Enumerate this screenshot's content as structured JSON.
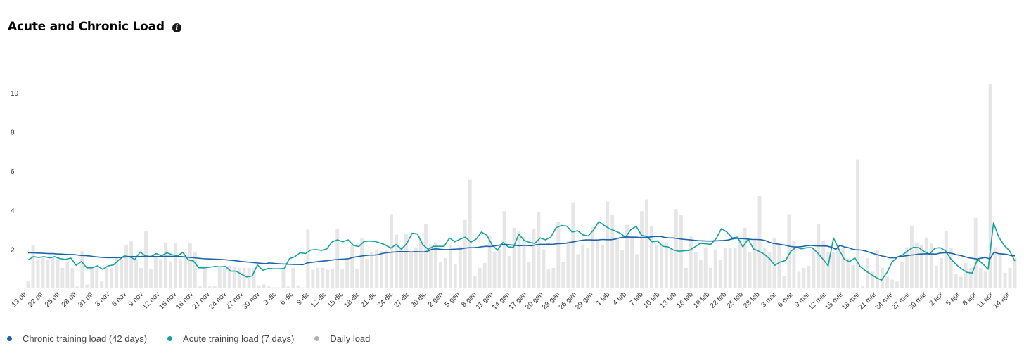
{
  "header": {
    "title": "Acute and Chronic Load",
    "info_icon": "info-icon"
  },
  "colors": {
    "chronic": "#1b64a8",
    "acute": "#14a39a",
    "daily": "#e6e6e6",
    "daily_legend": "#b0b0b0"
  },
  "chart_data": {
    "type": "bar",
    "ylim": [
      0,
      11
    ],
    "yticks": [
      2,
      4,
      6,
      8,
      10
    ],
    "grid": false,
    "legend_position": "bottom-left",
    "xtick_labels": [
      "19 ott",
      "22 ott",
      "25 ott",
      "28 ott",
      "31 ott",
      "3 nov",
      "6 nov",
      "9 nov",
      "12 nov",
      "15 nov",
      "18 nov",
      "21 nov",
      "24 nov",
      "27 nov",
      "30 nov",
      "3 dic",
      "6 dic",
      "9 dic",
      "12 dic",
      "15 dic",
      "18 dic",
      "21 dic",
      "24 dic",
      "27 dic",
      "30 dic",
      "2 gen",
      "5 gen",
      "8 gen",
      "11 gen",
      "14 gen",
      "17 gen",
      "20 gen",
      "23 gen",
      "26 gen",
      "29 gen",
      "1 feb",
      "4 feb",
      "7 feb",
      "10 feb",
      "13 feb",
      "16 feb",
      "19 feb",
      "22 feb",
      "25 feb",
      "28 feb",
      "3 mar",
      "6 mar",
      "9 mar",
      "12 mar",
      "15 mar",
      "18 mar",
      "21 mar",
      "24 mar",
      "27 mar",
      "30 mar",
      "2 apr",
      "5 apr",
      "8 apr",
      "11 apr",
      "14 apr"
    ],
    "series": [
      {
        "name": "Chronic training load (42 days)",
        "kind": "line",
        "values": [
          1.82,
          1.82,
          1.81,
          1.8,
          1.79,
          1.78,
          1.78,
          1.76,
          1.75,
          1.74,
          1.73,
          1.73,
          1.7,
          1.68,
          1.67,
          1.65,
          1.62,
          1.6,
          1.58,
          1.57,
          1.57,
          1.57,
          1.58,
          1.6,
          1.62,
          1.63,
          1.62,
          1.63,
          1.64,
          1.63,
          1.64,
          1.62,
          1.63,
          1.64,
          1.64,
          1.63,
          1.63,
          1.62,
          1.6,
          1.58,
          1.56,
          1.54,
          1.52,
          1.51,
          1.5,
          1.49,
          1.48,
          1.47,
          1.45,
          1.43,
          1.41,
          1.38,
          1.36,
          1.34,
          1.32,
          1.3,
          1.28,
          1.26,
          1.3,
          1.28,
          1.26,
          1.25,
          1.24,
          1.23,
          1.22,
          1.22,
          1.21,
          1.3,
          1.33,
          1.35,
          1.38,
          1.4,
          1.42,
          1.45,
          1.47,
          1.49,
          1.5,
          1.52,
          1.58,
          1.62,
          1.65,
          1.68,
          1.7,
          1.7,
          1.72,
          1.78,
          1.82,
          1.84,
          1.86,
          1.88,
          1.88,
          1.88,
          1.86,
          1.88,
          1.87,
          1.86,
          1.9,
          2.0,
          2.02,
          2.0,
          1.98,
          1.98,
          2.0,
          2.01,
          2.02,
          2.06,
          2.08,
          2.08,
          2.1,
          2.13,
          2.15,
          2.14,
          2.17,
          2.21,
          2.24,
          2.24,
          2.22,
          2.2,
          2.18,
          2.2,
          2.19,
          2.18,
          2.23,
          2.25,
          2.25,
          2.26,
          2.25,
          2.28,
          2.29,
          2.3,
          2.34,
          2.38,
          2.42,
          2.46,
          2.48,
          2.48,
          2.47,
          2.48,
          2.5,
          2.49,
          2.49,
          2.52,
          2.58,
          2.62,
          2.63,
          2.62,
          2.62,
          2.6,
          2.6,
          2.62,
          2.64,
          2.66,
          2.65,
          2.6,
          2.58,
          2.58,
          2.55,
          2.52,
          2.5,
          2.48,
          2.46,
          2.44,
          2.43,
          2.42,
          2.42,
          2.43,
          2.44,
          2.45,
          2.47,
          2.52,
          2.56,
          2.55,
          2.54,
          2.52,
          2.5,
          2.5,
          2.49,
          2.45,
          2.36,
          2.3,
          2.27,
          2.24,
          2.2,
          2.15,
          2.12,
          2.12,
          2.14,
          2.18,
          2.2,
          2.18,
          2.17,
          2.17,
          2.16,
          2.1,
          2.0,
          2.2,
          2.12,
          2.08,
          2.0,
          1.97,
          1.96,
          1.92,
          1.85,
          1.78,
          1.72,
          1.66,
          1.62,
          1.56,
          1.56,
          1.62,
          1.64,
          1.67,
          1.7,
          1.72,
          1.75,
          1.76,
          1.77,
          1.76,
          1.75,
          1.8,
          1.82,
          1.82,
          1.78,
          1.72,
          1.68,
          1.62,
          1.56,
          1.53,
          1.5,
          1.55,
          1.58,
          1.5,
          1.85,
          1.78,
          1.76,
          1.74,
          1.68,
          1.66
        ]
      },
      {
        "name": "Acute training load (7 days)",
        "kind": "line",
        "values": [
          1.45,
          1.62,
          1.58,
          1.62,
          1.56,
          1.62,
          1.52,
          1.48,
          1.55,
          1.18,
          1.38,
          1.05,
          1.05,
          1.15,
          0.97,
          1.15,
          1.2,
          1.45,
          1.66,
          1.62,
          1.48,
          1.86,
          1.66,
          1.62,
          1.78,
          1.66,
          1.82,
          1.72,
          1.66,
          1.84,
          1.46,
          1.4,
          1.05,
          1.05,
          1.08,
          1.12,
          1.1,
          1.12,
          0.88,
          0.88,
          0.72,
          0.58,
          0.63,
          1.2,
          0.92,
          1.02,
          1.0,
          1.0,
          1.02,
          1.52,
          1.62,
          1.82,
          1.78,
          1.96,
          1.98,
          1.94,
          2.02,
          2.38,
          2.48,
          2.38,
          2.48,
          2.2,
          2.14,
          2.4,
          2.42,
          2.4,
          2.32,
          2.22,
          2.06,
          2.24,
          2.0,
          2.3,
          2.82,
          2.78,
          2.23,
          2.0,
          2.15,
          2.15,
          2.15,
          2.58,
          2.38,
          2.52,
          2.62,
          2.36,
          2.52,
          2.88,
          2.72,
          2.22,
          1.95,
          2.35,
          2.12,
          2.1,
          2.78,
          2.45,
          2.35,
          2.3,
          2.58,
          2.48,
          2.62,
          3.1,
          3.22,
          3.18,
          2.88,
          2.95,
          2.74,
          2.68,
          2.98,
          3.42,
          3.22,
          3.05,
          2.95,
          2.82,
          2.62,
          3.0,
          3.18,
          2.72,
          2.65,
          2.38,
          2.42,
          2.15,
          2.12,
          1.96,
          1.9,
          1.92,
          1.95,
          2.12,
          2.3,
          2.28,
          2.25,
          2.55,
          3.06,
          2.88,
          2.58,
          2.62,
          2.12,
          2.52,
          2.02,
          1.9,
          1.75,
          1.52,
          1.18,
          1.35,
          1.42,
          1.9,
          2.1,
          2.02,
          2.08,
          2.08,
          1.82,
          1.5,
          1.15,
          2.58,
          2.0,
          1.5,
          1.36,
          1.56,
          1.12,
          0.9,
          0.72,
          0.55,
          0.42,
          0.8,
          1.35,
          1.6,
          1.72,
          1.94,
          2.1,
          2.08,
          1.88,
          1.75,
          2.05,
          2.08,
          1.92,
          1.5,
          1.22,
          1.0,
          0.82,
          0.78,
          1.48,
          1.25,
          0.98,
          3.35,
          2.62,
          2.2,
          1.92,
          1.4
        ]
      },
      {
        "name": "Daily load",
        "kind": "bar",
        "values": [
          0.35,
          2.2,
          1.5,
          1.55,
          1.45,
          1.6,
          1.5,
          1.05,
          1.35,
          1.05,
          0.1,
          1.9,
          0.2,
          1.05,
          1.05,
          0.35,
          1.05,
          1.05,
          1.55,
          1.5,
          2.2,
          2.4,
          1.5,
          1.05,
          2.95,
          1.0,
          1.65,
          1.5,
          2.35,
          1.35,
          2.3,
          1.5,
          1.65,
          2.3,
          1.85,
          0.1,
          1.05,
          0.1,
          0.1,
          1.05,
          1.05,
          1.15,
          1.1,
          1.05,
          1.05,
          1.05,
          1.05,
          0.15,
          0.2,
          0.1,
          0.05,
          0.05,
          1.0,
          0.1,
          1.05,
          0.15,
          0.05,
          3.0,
          0.95,
          1.05,
          1.05,
          0.95,
          1.0,
          3.05,
          1.0,
          1.55,
          2.25,
          1.0,
          2.55,
          1.5,
          1.85,
          2.0,
          1.9,
          1.95,
          3.8,
          2.75,
          2.15,
          2.8,
          1.85,
          2.1,
          2.5,
          3.3,
          2.25,
          2.35,
          1.35,
          1.55,
          2.25,
          1.25,
          2.15,
          3.5,
          5.55,
          0.65,
          1.05,
          1.3,
          2.7,
          1.85,
          2.0,
          3.95,
          1.65,
          3.1,
          2.95,
          2.65,
          1.35,
          3.05,
          3.9,
          2.0,
          1.0,
          1.05,
          3.4,
          1.35,
          2.45,
          4.4,
          1.75,
          2.25,
          2.05,
          3.15,
          2.45,
          2.2,
          4.45,
          3.75,
          2.55,
          1.95,
          3.25,
          2.6,
          1.75,
          3.95,
          4.55,
          3.2,
          2.2,
          2.35,
          2.35,
          2.05,
          4.05,
          3.75,
          1.05,
          2.65,
          1.85,
          1.45,
          2.1,
          1.05,
          2.0,
          1.45,
          2.05,
          2.05,
          2.05,
          2.65,
          3.1,
          1.85,
          2.45,
          4.75,
          2.05,
          1.85,
          2.55,
          2.25,
          0.65,
          3.8,
          2.45,
          0.85,
          1.05,
          1.15,
          2.05,
          3.3,
          2.45,
          1.85,
          1.85,
          2.05,
          2.05,
          1.55,
          1.2,
          6.6,
          0.1,
          1.55,
          0.85,
          1.95,
          1.05,
          0.65,
          0.45,
          0.35,
          1.35,
          2.1,
          3.2,
          2.35,
          2.2,
          2.6,
          2.3,
          1.15,
          1.55,
          2.95,
          2.05,
          0.75,
          0.6,
          1.3,
          1.05,
          3.6,
          1.05,
          0.85,
          10.45,
          2.1,
          1.8,
          0.8,
          1.05,
          1.55
        ]
      }
    ]
  }
}
